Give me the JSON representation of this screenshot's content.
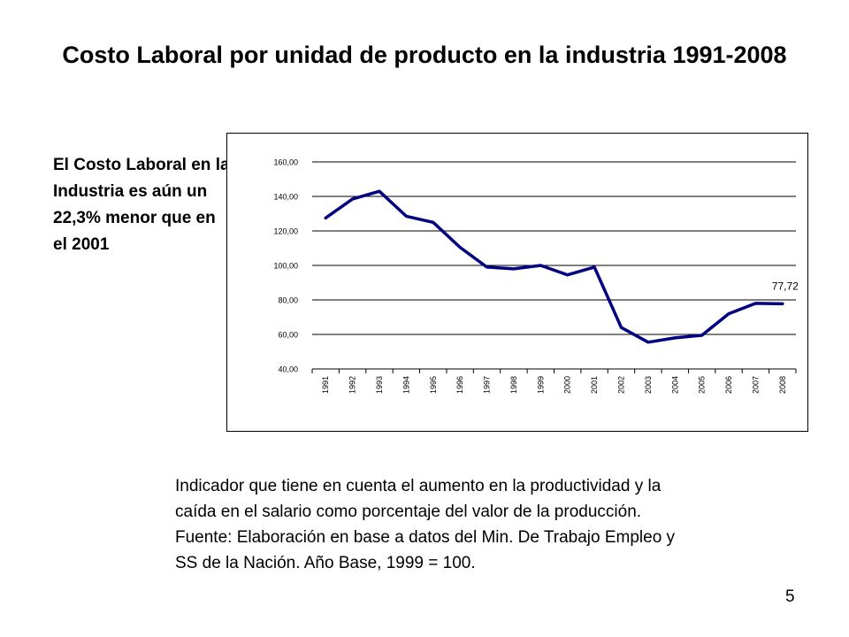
{
  "slide": {
    "title": "Costo Laboral por unidad de producto en la industria 1991-2008",
    "side_note": "El Costo Laboral en la Industria es aún un 22,3% menor que en el 2001",
    "footnote": "Indicador que tiene en cuenta el aumento en la productividad y la caída en el salario como porcentaje del valor de la producción. Fuente: Elaboración en base a datos del Min. De Trabajo Empleo y SS de la Nación. Año Base, 1999 = 100.",
    "page_number": "5"
  },
  "colors": {
    "line": "#000080",
    "grid": "#000000",
    "text": "#000000"
  },
  "chart_data": {
    "type": "line",
    "title": "",
    "xlabel": "",
    "ylabel": "",
    "categories": [
      "1991",
      "1992",
      "1993",
      "1994",
      "1995",
      "1996",
      "1997",
      "1998",
      "1999",
      "2000",
      "2001",
      "2002",
      "2003",
      "2004",
      "2005",
      "2006",
      "2007",
      "2008"
    ],
    "y_ticks": [
      "160,00",
      "140,00",
      "120,00",
      "100,00",
      "80,00",
      "60,00",
      "40,00"
    ],
    "ylim": [
      40,
      160
    ],
    "grid": true,
    "legend": "none",
    "series": [
      {
        "values": [
          127.5,
          138.5,
          143.0,
          128.5,
          125.0,
          110.5,
          99.0,
          98.0,
          100.0,
          94.5,
          99.0,
          64.0,
          55.5,
          58.0,
          59.5,
          72.0,
          78.0,
          77.72
        ]
      }
    ],
    "annotations": [
      {
        "x": "2008",
        "text": "77,72"
      }
    ]
  }
}
